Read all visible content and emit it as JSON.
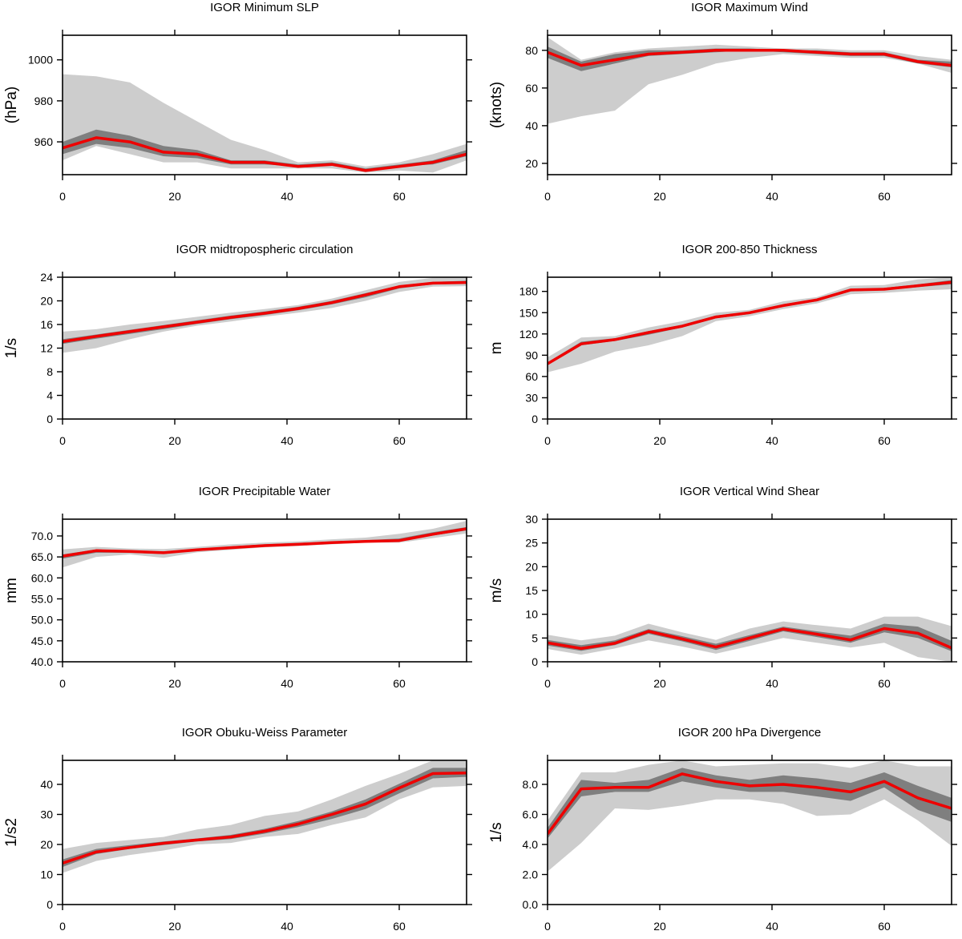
{
  "colors": {
    "ensemble_outer": "#cdcdcd",
    "ensemble_inner": "#7f7f7f",
    "mean_line": "#ee0000",
    "axes": "#000000"
  },
  "chart_data": [
    {
      "type": "area",
      "title": "IGOR Minimum SLP",
      "ylabel": "(hPa)",
      "xlim": [
        0,
        72
      ],
      "ylim": [
        944,
        1012
      ],
      "xticks": [
        0,
        20,
        40,
        60
      ],
      "yticks": [
        960,
        980,
        1000
      ],
      "x": [
        0,
        6,
        12,
        18,
        24,
        30,
        36,
        42,
        48,
        54,
        60,
        66,
        72
      ],
      "series": [
        {
          "role": "outer_min",
          "values": [
            951,
            958,
            954,
            950,
            950,
            947,
            947,
            947,
            947,
            945,
            946,
            945,
            951
          ]
        },
        {
          "role": "outer_max",
          "values": [
            993,
            992,
            989,
            979,
            970,
            961,
            956,
            950,
            951,
            948,
            950,
            954,
            959
          ]
        },
        {
          "role": "inner_min",
          "values": [
            954,
            959,
            957,
            953,
            952,
            949,
            949,
            948,
            949,
            946,
            948,
            949,
            953
          ]
        },
        {
          "role": "inner_max",
          "values": [
            960,
            966,
            963,
            958,
            956,
            951,
            951,
            949,
            950,
            947,
            949,
            951,
            956
          ]
        },
        {
          "role": "mean",
          "values": [
            957,
            962,
            960,
            955,
            954,
            950,
            950,
            948,
            949,
            946,
            948,
            950,
            954
          ]
        }
      ]
    },
    {
      "type": "area",
      "title": "IGOR Maximum Wind",
      "ylabel": "(knots)",
      "xlim": [
        0,
        72
      ],
      "ylim": [
        14,
        88
      ],
      "xticks": [
        0,
        20,
        40,
        60
      ],
      "yticks": [
        20,
        40,
        60,
        80
      ],
      "x": [
        0,
        6,
        12,
        18,
        24,
        30,
        36,
        42,
        48,
        54,
        60,
        66,
        72
      ],
      "series": [
        {
          "role": "outer_min",
          "values": [
            41,
            45,
            48,
            62,
            67,
            73,
            76,
            78,
            77,
            76,
            76,
            73,
            68
          ]
        },
        {
          "role": "outer_max",
          "values": [
            87,
            75,
            79,
            81,
            82,
            83,
            82,
            81,
            81,
            80,
            80,
            77,
            75
          ]
        },
        {
          "role": "inner_min",
          "values": [
            76,
            69,
            73,
            77,
            78,
            79,
            80,
            79,
            78,
            77,
            77,
            73,
            71
          ]
        },
        {
          "role": "inner_max",
          "values": [
            82,
            74,
            78,
            80,
            80,
            81,
            81,
            80,
            80,
            79,
            79,
            75,
            74
          ]
        },
        {
          "role": "mean",
          "values": [
            79,
            72,
            75,
            78,
            79,
            80,
            80,
            80,
            79,
            78,
            78,
            74,
            72
          ]
        }
      ]
    },
    {
      "type": "area",
      "title": "IGOR midtropospheric circulation",
      "ylabel": "1/s",
      "xlim": [
        0,
        72
      ],
      "ylim": [
        0,
        24
      ],
      "xticks": [
        0,
        20,
        40,
        60
      ],
      "yticks": [
        0,
        4,
        8,
        12,
        16,
        20,
        24
      ],
      "x": [
        0,
        6,
        12,
        18,
        24,
        30,
        36,
        42,
        48,
        54,
        60,
        66,
        72
      ],
      "series": [
        {
          "role": "outer_min",
          "values": [
            11.2,
            12.0,
            13.5,
            14.8,
            15.8,
            16.5,
            17.3,
            18.0,
            18.8,
            20.0,
            21.5,
            22.4,
            22.5
          ]
        },
        {
          "role": "outer_max",
          "values": [
            14.8,
            15.2,
            16.0,
            16.6,
            17.3,
            18.0,
            18.6,
            19.3,
            20.4,
            21.8,
            23.2,
            23.9,
            24.0
          ]
        },
        {
          "role": "inner_min",
          "values": [
            12.7,
            13.6,
            14.4,
            15.2,
            16.1,
            16.9,
            17.6,
            18.4,
            19.4,
            20.6,
            22.1,
            22.8,
            22.9
          ]
        },
        {
          "role": "inner_max",
          "values": [
            13.5,
            14.3,
            15.1,
            15.9,
            16.7,
            17.5,
            18.2,
            19.0,
            20.0,
            21.3,
            22.6,
            23.2,
            23.4
          ]
        },
        {
          "role": "mean",
          "values": [
            13.1,
            14.0,
            14.8,
            15.6,
            16.4,
            17.2,
            17.9,
            18.7,
            19.7,
            21.0,
            22.4,
            23.0,
            23.1
          ]
        }
      ]
    },
    {
      "type": "area",
      "title": "IGOR 200-850 Thickness",
      "ylabel": "m",
      "xlim": [
        0,
        72
      ],
      "ylim": [
        0,
        200
      ],
      "xticks": [
        0,
        20,
        40,
        60
      ],
      "yticks": [
        0,
        30,
        60,
        90,
        120,
        150,
        180
      ],
      "x": [
        0,
        6,
        12,
        18,
        24,
        30,
        36,
        42,
        48,
        54,
        60,
        66,
        72
      ],
      "series": [
        {
          "role": "outer_min",
          "values": [
            66,
            78,
            95,
            104,
            117,
            138,
            145,
            155,
            163,
            176,
            178,
            181,
            183
          ]
        },
        {
          "role": "outer_max",
          "values": [
            87,
            115,
            117,
            129,
            138,
            150,
            154,
            166,
            172,
            188,
            189,
            197,
            200
          ]
        },
        {
          "role": "inner_min",
          "values": [
            76,
            104,
            110,
            119,
            129,
            142,
            148,
            159,
            166,
            180,
            182,
            186,
            190
          ]
        },
        {
          "role": "inner_max",
          "values": [
            80,
            109,
            114,
            124,
            133,
            146,
            151,
            162,
            169,
            183,
            185,
            190,
            196
          ]
        },
        {
          "role": "mean",
          "values": [
            78,
            106,
            112,
            122,
            131,
            144,
            150,
            160,
            168,
            182,
            183,
            188,
            193
          ]
        }
      ]
    },
    {
      "type": "area",
      "title": "IGOR Precipitable Water",
      "ylabel": "mm",
      "xlim": [
        0,
        72
      ],
      "ylim": [
        40,
        74
      ],
      "xticks": [
        0,
        20,
        40,
        60
      ],
      "yticks": [
        40,
        45,
        50,
        55,
        60,
        65,
        70
      ],
      "yticklabels": [
        "40.0",
        "45.0",
        "50.0",
        "55.0",
        "60.0",
        "65.0",
        "70.0"
      ],
      "x": [
        0,
        6,
        12,
        18,
        24,
        30,
        36,
        42,
        48,
        54,
        60,
        66,
        72
      ],
      "series": [
        {
          "role": "outer_min",
          "values": [
            62.5,
            65.0,
            65.6,
            64.8,
            66.1,
            66.7,
            67.3,
            67.6,
            68.0,
            68.4,
            68.4,
            69.5,
            70.6
          ]
        },
        {
          "role": "outer_max",
          "values": [
            66.8,
            67.4,
            67.0,
            66.9,
            67.4,
            68.0,
            68.4,
            68.7,
            69.2,
            69.6,
            70.5,
            71.7,
            73.6
          ]
        },
        {
          "role": "inner_min",
          "values": [
            64.6,
            66.0,
            66.0,
            65.7,
            66.5,
            67.0,
            67.5,
            67.9,
            68.3,
            68.6,
            68.8,
            70.1,
            71.3
          ]
        },
        {
          "role": "inner_max",
          "values": [
            65.6,
            66.8,
            66.5,
            66.3,
            66.9,
            67.5,
            68.0,
            68.3,
            68.7,
            69.0,
            69.4,
            70.9,
            72.1
          ]
        },
        {
          "role": "mean",
          "values": [
            65.2,
            66.5,
            66.3,
            66.0,
            66.7,
            67.2,
            67.7,
            68.0,
            68.4,
            68.7,
            68.9,
            70.4,
            71.7
          ]
        }
      ]
    },
    {
      "type": "area",
      "title": "IGOR Vertical Wind Shear",
      "ylabel": "m/s",
      "xlim": [
        0,
        72
      ],
      "ylim": [
        0,
        30
      ],
      "xticks": [
        0,
        20,
        40,
        60
      ],
      "yticks": [
        0,
        5,
        10,
        15,
        20,
        25,
        30
      ],
      "x": [
        0,
        6,
        12,
        18,
        24,
        30,
        36,
        42,
        48,
        54,
        60,
        66,
        72
      ],
      "series": [
        {
          "role": "outer_min",
          "values": [
            2.7,
            1.5,
            2.8,
            4.5,
            3.2,
            1.7,
            3.3,
            5.0,
            4.0,
            3.0,
            4.0,
            1.0,
            0.0
          ]
        },
        {
          "role": "outer_max",
          "values": [
            5.7,
            4.5,
            5.5,
            8.0,
            6.2,
            4.6,
            7.0,
            8.5,
            7.7,
            7.0,
            9.5,
            9.5,
            7.5
          ]
        },
        {
          "role": "inner_min",
          "values": [
            3.4,
            2.3,
            3.5,
            5.9,
            4.3,
            2.5,
            4.4,
            6.4,
            5.2,
            4.0,
            6.2,
            5.0,
            2.2
          ]
        },
        {
          "role": "inner_max",
          "values": [
            4.6,
            3.5,
            4.5,
            6.9,
            5.4,
            3.8,
            5.6,
            7.4,
            6.4,
            5.5,
            8.0,
            7.4,
            4.4
          ]
        },
        {
          "role": "mean",
          "values": [
            4.0,
            2.8,
            3.9,
            6.4,
            4.8,
            3.1,
            5.0,
            6.9,
            5.8,
            4.6,
            7.0,
            6.0,
            2.9
          ]
        }
      ]
    },
    {
      "type": "area",
      "title": "IGOR Obuku-Weiss Parameter",
      "ylabel": "1/s2",
      "xlim": [
        0,
        72
      ],
      "ylim": [
        0,
        48
      ],
      "xticks": [
        0,
        20,
        40,
        60
      ],
      "yticks": [
        0,
        10,
        20,
        30,
        40
      ],
      "x": [
        0,
        6,
        12,
        18,
        24,
        30,
        36,
        42,
        48,
        54,
        60,
        66,
        72
      ],
      "series": [
        {
          "role": "outer_min",
          "values": [
            10.5,
            14.5,
            16.5,
            18.0,
            20.0,
            20.5,
            22.5,
            23.5,
            26.5,
            29.0,
            35.0,
            39.0,
            39.5
          ]
        },
        {
          "role": "outer_max",
          "values": [
            18.5,
            20.5,
            21.5,
            22.5,
            25.0,
            26.5,
            29.5,
            31.0,
            35.0,
            39.5,
            43.5,
            48.0,
            48.0
          ]
        },
        {
          "role": "inner_min",
          "values": [
            12.5,
            16.8,
            18.5,
            19.8,
            21.0,
            21.8,
            23.6,
            25.8,
            28.5,
            31.8,
            37.0,
            42.0,
            42.5
          ]
        },
        {
          "role": "inner_max",
          "values": [
            15.0,
            18.5,
            19.8,
            21.0,
            22.0,
            23.2,
            25.2,
            27.8,
            31.0,
            35.0,
            40.2,
            45.5,
            45.5
          ]
        },
        {
          "role": "mean",
          "values": [
            13.8,
            17.5,
            19.0,
            20.4,
            21.5,
            22.5,
            24.4,
            26.8,
            30.0,
            33.5,
            38.8,
            43.6,
            43.8
          ]
        }
      ]
    },
    {
      "type": "area",
      "title": "IGOR 200 hPa Divergence",
      "ylabel": "1/s",
      "xlim": [
        0,
        72
      ],
      "ylim": [
        0,
        9.6
      ],
      "xticks": [
        0,
        20,
        40,
        60
      ],
      "yticks": [
        0,
        2,
        4,
        6,
        8
      ],
      "yticklabels": [
        "0.0",
        "2.0",
        "4.0",
        "6.0",
        "8.0"
      ],
      "x": [
        0,
        6,
        12,
        18,
        24,
        30,
        36,
        42,
        48,
        54,
        60,
        66,
        72
      ],
      "series": [
        {
          "role": "outer_min",
          "values": [
            2.2,
            4.1,
            6.4,
            6.3,
            6.6,
            7.0,
            7.0,
            6.7,
            5.9,
            6.0,
            7.0,
            5.6,
            3.9
          ]
        },
        {
          "role": "outer_max",
          "values": [
            5.6,
            8.8,
            8.8,
            9.3,
            9.6,
            9.2,
            9.3,
            9.4,
            9.4,
            9.1,
            9.6,
            9.2,
            9.2
          ]
        },
        {
          "role": "inner_min",
          "values": [
            4.4,
            7.2,
            7.5,
            7.5,
            8.2,
            7.8,
            7.5,
            7.5,
            7.2,
            6.9,
            7.8,
            6.3,
            5.5
          ]
        },
        {
          "role": "inner_max",
          "values": [
            5.1,
            8.3,
            8.1,
            8.3,
            9.1,
            8.6,
            8.3,
            8.6,
            8.4,
            8.1,
            8.8,
            7.9,
            7.1
          ]
        },
        {
          "role": "mean",
          "values": [
            4.7,
            7.7,
            7.8,
            7.8,
            8.7,
            8.2,
            7.9,
            8.0,
            7.8,
            7.5,
            8.2,
            7.1,
            6.4
          ]
        }
      ]
    }
  ]
}
